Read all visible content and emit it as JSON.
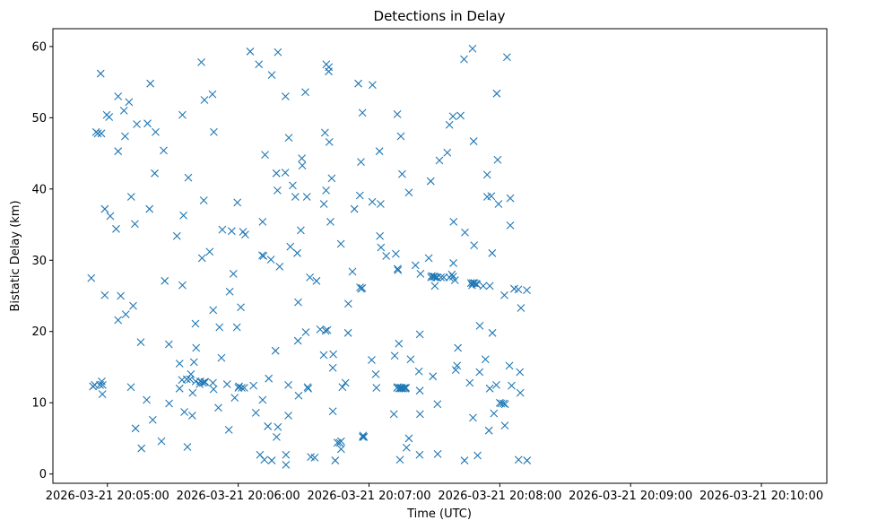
{
  "chart_data": {
    "type": "scatter",
    "title": "Detections in Delay",
    "xlabel": "Time (UTC)",
    "ylabel": "Bistatic Delay (km)",
    "marker": "x",
    "color": "#1f77b4",
    "grid": false,
    "x_unit": "seconds after 2026-03-21 20:04:00 UTC",
    "xlim": [
      35,
      390
    ],
    "ylim": [
      -1.3,
      62.5
    ],
    "x_ticks": [
      {
        "value": 60,
        "label": "2026-03-21 20:05:00"
      },
      {
        "value": 120,
        "label": "2026-03-21 20:06:00"
      },
      {
        "value": 180,
        "label": "2026-03-21 20:07:00"
      },
      {
        "value": 240,
        "label": "2026-03-21 20:08:00"
      },
      {
        "value": 300,
        "label": "2026-03-21 20:09:00"
      },
      {
        "value": 360,
        "label": "2026-03-21 20:10:00"
      }
    ],
    "y_ticks": [
      {
        "value": 0,
        "label": "0"
      },
      {
        "value": 10,
        "label": "10"
      },
      {
        "value": 20,
        "label": "20"
      },
      {
        "value": 30,
        "label": "30"
      },
      {
        "value": 40,
        "label": "40"
      },
      {
        "value": 50,
        "label": "50"
      },
      {
        "value": 60,
        "label": "60"
      }
    ],
    "points": [
      [
        52.6,
        27.5
      ],
      [
        53.4,
        12.3
      ],
      [
        54.2,
        12.5
      ],
      [
        54.8,
        48.0
      ],
      [
        55.6,
        47.8
      ],
      [
        56.6,
        12.5
      ],
      [
        56.9,
        56.2
      ],
      [
        57.2,
        47.8
      ],
      [
        57.4,
        13.0
      ],
      [
        57.8,
        12.5
      ],
      [
        57.7,
        11.2
      ],
      [
        58.8,
        25.1
      ],
      [
        58.8,
        37.2
      ],
      [
        59.7,
        50.4
      ],
      [
        60.8,
        50.1
      ],
      [
        61.3,
        36.2
      ],
      [
        64.0,
        34.4
      ],
      [
        64.9,
        21.6
      ],
      [
        64.9,
        45.3
      ],
      [
        64.9,
        53.0
      ],
      [
        66.1,
        25.0
      ],
      [
        67.6,
        51.0
      ],
      [
        68.4,
        22.4
      ],
      [
        68.1,
        47.4
      ],
      [
        69.9,
        52.2
      ],
      [
        70.9,
        38.9
      ],
      [
        70.8,
        12.2
      ],
      [
        71.8,
        23.6
      ],
      [
        72.6,
        35.1
      ],
      [
        72.9,
        6.4
      ],
      [
        73.5,
        49.1
      ],
      [
        75.3,
        18.5
      ],
      [
        75.6,
        3.6
      ],
      [
        78.0,
        10.4
      ],
      [
        78.4,
        49.2
      ],
      [
        79.3,
        37.2
      ],
      [
        79.7,
        54.8
      ],
      [
        80.8,
        7.6
      ],
      [
        81.7,
        42.2
      ],
      [
        82.1,
        48.0
      ],
      [
        84.8,
        4.6
      ],
      [
        85.8,
        45.4
      ],
      [
        86.3,
        27.1
      ],
      [
        88.2,
        18.2
      ],
      [
        88.3,
        9.9
      ],
      [
        91.9,
        33.4
      ],
      [
        93.1,
        15.5
      ],
      [
        93.1,
        12.0
      ],
      [
        94.2,
        13.2
      ],
      [
        94.4,
        26.5
      ],
      [
        94.4,
        50.4
      ],
      [
        94.9,
        36.3
      ],
      [
        95.3,
        8.7
      ],
      [
        96.4,
        13.3
      ],
      [
        96.7,
        3.8
      ],
      [
        97.1,
        41.6
      ],
      [
        97.9,
        13.3
      ],
      [
        98.3,
        14.0
      ],
      [
        98.9,
        8.2
      ],
      [
        99.1,
        11.4
      ],
      [
        99.7,
        15.7
      ],
      [
        100.4,
        21.1
      ],
      [
        100.5,
        13.0
      ],
      [
        100.7,
        17.7
      ],
      [
        102.3,
        12.6
      ],
      [
        102.6,
        13.0
      ],
      [
        103.1,
        57.8
      ],
      [
        103.4,
        30.3
      ],
      [
        103.8,
        12.8
      ],
      [
        104.5,
        12.9
      ],
      [
        104.2,
        38.4
      ],
      [
        104.5,
        52.5
      ],
      [
        104.9,
        12.9
      ],
      [
        106.9,
        31.2
      ],
      [
        108.2,
        53.3
      ],
      [
        108.4,
        12.8
      ],
      [
        108.5,
        23.0
      ],
      [
        108.7,
        11.9
      ],
      [
        108.8,
        48.0
      ],
      [
        110.9,
        9.3
      ],
      [
        111.4,
        20.6
      ],
      [
        112.3,
        16.3
      ],
      [
        112.7,
        34.3
      ],
      [
        114.9,
        12.6
      ],
      [
        115.7,
        6.2
      ],
      [
        116.1,
        25.6
      ],
      [
        117.0,
        34.1
      ],
      [
        117.8,
        28.1
      ],
      [
        118.4,
        10.7
      ],
      [
        119.4,
        20.6
      ],
      [
        119.6,
        38.1
      ],
      [
        120.1,
        12.1
      ],
      [
        120.4,
        12.3
      ],
      [
        121.2,
        23.4
      ],
      [
        121.6,
        12.1
      ],
      [
        122.2,
        34.0
      ],
      [
        122.8,
        12.1
      ],
      [
        123.2,
        33.6
      ],
      [
        125.5,
        59.3
      ],
      [
        127.0,
        12.4
      ],
      [
        128.1,
        8.6
      ],
      [
        129.5,
        57.5
      ],
      [
        130.0,
        2.7
      ],
      [
        131.0,
        30.7
      ],
      [
        131.2,
        10.4
      ],
      [
        131.2,
        35.4
      ],
      [
        131.6,
        30.6
      ],
      [
        132.0,
        2.0
      ],
      [
        132.3,
        44.8
      ],
      [
        133.6,
        6.7
      ],
      [
        134.0,
        13.4
      ],
      [
        135.0,
        30.1
      ],
      [
        135.4,
        56.0
      ],
      [
        135.4,
        1.9
      ],
      [
        137.1,
        17.3
      ],
      [
        137.5,
        42.2
      ],
      [
        137.6,
        5.2
      ],
      [
        138.0,
        39.8
      ],
      [
        138.2,
        59.2
      ],
      [
        138.2,
        6.6
      ],
      [
        139.0,
        29.1
      ],
      [
        141.6,
        42.3
      ],
      [
        141.7,
        53.0
      ],
      [
        141.9,
        2.7
      ],
      [
        141.9,
        1.3
      ],
      [
        143.2,
        47.2
      ],
      [
        143.0,
        12.5
      ],
      [
        143.0,
        8.2
      ],
      [
        143.9,
        31.9
      ],
      [
        145.0,
        40.5
      ],
      [
        146.2,
        38.9
      ],
      [
        147.1,
        31.0
      ],
      [
        147.4,
        18.7
      ],
      [
        147.5,
        24.1
      ],
      [
        147.7,
        11.0
      ],
      [
        148.7,
        34.2
      ],
      [
        149.2,
        44.3
      ],
      [
        149.4,
        43.3
      ],
      [
        150.8,
        53.6
      ],
      [
        151.0,
        19.9
      ],
      [
        151.5,
        38.9
      ],
      [
        151.8,
        12.2
      ],
      [
        152.1,
        12.0
      ],
      [
        152.9,
        27.6
      ],
      [
        153.3,
        2.4
      ],
      [
        155.1,
        2.3
      ],
      [
        155.9,
        27.1
      ],
      [
        157.6,
        20.3
      ],
      [
        159.2,
        16.7
      ],
      [
        159.3,
        37.9
      ],
      [
        159.8,
        47.9
      ],
      [
        160.1,
        20.1
      ],
      [
        160.3,
        39.8
      ],
      [
        160.4,
        57.5
      ],
      [
        160.9,
        20.2
      ],
      [
        161.5,
        56.5
      ],
      [
        161.6,
        57.1
      ],
      [
        161.8,
        46.6
      ],
      [
        162.3,
        35.4
      ],
      [
        162.9,
        41.5
      ],
      [
        163.4,
        8.8
      ],
      [
        163.4,
        14.9
      ],
      [
        163.6,
        16.8
      ],
      [
        164.5,
        1.9
      ],
      [
        165.5,
        4.4
      ],
      [
        166.5,
        4.4
      ],
      [
        167.1,
        32.3
      ],
      [
        167.2,
        3.5
      ],
      [
        167.2,
        4.6
      ],
      [
        167.8,
        12.2
      ],
      [
        169.2,
        12.8
      ],
      [
        170.4,
        19.8
      ],
      [
        170.5,
        23.9
      ],
      [
        172.4,
        28.4
      ],
      [
        173.3,
        37.2
      ],
      [
        175.1,
        54.8
      ],
      [
        175.8,
        39.1
      ],
      [
        175.9,
        26.2
      ],
      [
        176.4,
        26.0
      ],
      [
        176.3,
        43.8
      ],
      [
        176.9,
        26.1
      ],
      [
        177.0,
        50.7
      ],
      [
        177.1,
        5.2
      ],
      [
        177.3,
        5.4
      ],
      [
        177.7,
        5.2
      ],
      [
        181.2,
        16.0
      ],
      [
        181.5,
        38.2
      ],
      [
        181.6,
        54.6
      ],
      [
        183.1,
        14.0
      ],
      [
        183.4,
        12.1
      ],
      [
        184.8,
        45.3
      ],
      [
        185.0,
        33.4
      ],
      [
        185.3,
        37.9
      ],
      [
        185.5,
        31.8
      ],
      [
        187.9,
        30.6
      ],
      [
        191.4,
        8.4
      ],
      [
        191.8,
        16.6
      ],
      [
        192.3,
        30.9
      ],
      [
        192.9,
        12.1
      ],
      [
        193.0,
        50.5
      ],
      [
        193.1,
        28.8
      ],
      [
        193.2,
        12.2
      ],
      [
        193.3,
        28.6
      ],
      [
        193.7,
        18.3
      ],
      [
        193.8,
        12.0
      ],
      [
        194.2,
        2.0
      ],
      [
        194.3,
        12.1
      ],
      [
        194.5,
        12.1
      ],
      [
        194.6,
        47.4
      ],
      [
        194.9,
        12.0
      ],
      [
        195.0,
        12.1
      ],
      [
        195.2,
        42.1
      ],
      [
        195.7,
        12.0
      ],
      [
        196.4,
        12.1
      ],
      [
        196.6,
        12.0
      ],
      [
        197.0,
        12.1
      ],
      [
        197.2,
        3.7
      ],
      [
        198.3,
        39.5
      ],
      [
        198.3,
        5.0
      ],
      [
        199.1,
        16.1
      ],
      [
        201.3,
        29.3
      ],
      [
        202.9,
        14.4
      ],
      [
        203.2,
        2.7
      ],
      [
        203.3,
        11.7
      ],
      [
        203.3,
        19.6
      ],
      [
        203.4,
        8.4
      ],
      [
        203.6,
        28.1
      ],
      [
        207.4,
        30.3
      ],
      [
        208.3,
        41.1
      ],
      [
        208.5,
        27.6
      ],
      [
        208.8,
        27.8
      ],
      [
        209.3,
        13.7
      ],
      [
        209.6,
        27.7
      ],
      [
        210.1,
        27.7
      ],
      [
        210.2,
        26.4
      ],
      [
        210.8,
        27.6
      ],
      [
        211.3,
        27.6
      ],
      [
        211.4,
        9.8
      ],
      [
        211.5,
        2.8
      ],
      [
        212.3,
        44.0
      ],
      [
        213.0,
        27.6
      ],
      [
        214.3,
        27.6
      ],
      [
        215.9,
        45.1
      ],
      [
        216.9,
        49.0
      ],
      [
        216.9,
        27.6
      ],
      [
        218.0,
        28.0
      ],
      [
        218.6,
        27.7
      ],
      [
        218.5,
        50.2
      ],
      [
        218.7,
        29.6
      ],
      [
        218.8,
        35.4
      ],
      [
        219.4,
        27.2
      ],
      [
        219.8,
        14.6
      ],
      [
        220.4,
        15.2
      ],
      [
        220.8,
        17.7
      ],
      [
        222.0,
        50.3
      ],
      [
        223.6,
        58.2
      ],
      [
        223.8,
        1.9
      ],
      [
        224.0,
        33.9
      ],
      [
        226.2,
        12.8
      ],
      [
        226.8,
        26.8
      ],
      [
        227.3,
        26.5
      ],
      [
        227.5,
        59.7
      ],
      [
        227.7,
        7.9
      ],
      [
        227.7,
        26.8
      ],
      [
        228.2,
        32.1
      ],
      [
        228.3,
        26.8
      ],
      [
        228.0,
        46.7
      ],
      [
        229.1,
        26.7
      ],
      [
        229.5,
        26.6
      ],
      [
        229.8,
        2.6
      ],
      [
        230.7,
        14.3
      ],
      [
        230.8,
        20.8
      ],
      [
        232.4,
        26.4
      ],
      [
        233.4,
        16.1
      ],
      [
        234.2,
        38.9
      ],
      [
        234.2,
        42.0
      ],
      [
        235.0,
        6.1
      ],
      [
        235.4,
        26.4
      ],
      [
        235.4,
        12.0
      ],
      [
        236.1,
        39.0
      ],
      [
        236.5,
        31.0
      ],
      [
        236.6,
        19.8
      ],
      [
        237.3,
        8.5
      ],
      [
        238.4,
        12.5
      ],
      [
        238.6,
        53.4
      ],
      [
        239.0,
        44.1
      ],
      [
        239.4,
        37.9
      ],
      [
        240.0,
        10.0
      ],
      [
        240.6,
        9.9
      ],
      [
        241.7,
        9.9
      ],
      [
        242.1,
        25.1
      ],
      [
        242.3,
        6.8
      ],
      [
        242.4,
        9.8
      ],
      [
        243.3,
        58.5
      ],
      [
        244.4,
        15.2
      ],
      [
        244.8,
        34.9
      ],
      [
        244.8,
        38.7
      ],
      [
        245.4,
        12.4
      ],
      [
        246.6,
        26.0
      ],
      [
        248.5,
        25.9
      ],
      [
        248.6,
        2.0
      ],
      [
        249.2,
        14.3
      ],
      [
        249.4,
        11.4
      ],
      [
        249.7,
        23.3
      ],
      [
        252.4,
        25.8
      ],
      [
        252.5,
        1.9
      ]
    ]
  }
}
